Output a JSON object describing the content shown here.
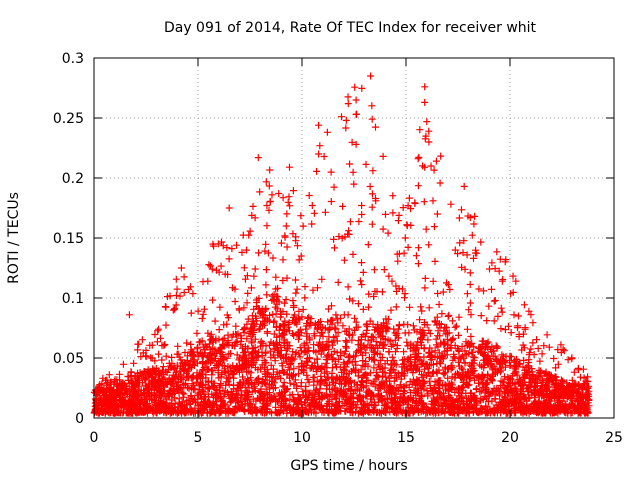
{
  "chart_data": {
    "type": "scatter",
    "title": "Day 091 of 2014, Rate Of TEC Index for receiver whit",
    "xlabel": "GPS time / hours",
    "ylabel": "ROTI / TECUs",
    "xlim": [
      0,
      25
    ],
    "ylim": [
      0,
      0.3
    ],
    "xticks": [
      0,
      5,
      10,
      15,
      20,
      25
    ],
    "xtick_labels": [
      "0",
      "5",
      "10",
      "15",
      "20",
      "25"
    ],
    "yticks": [
      0,
      0.05,
      0.1,
      0.15,
      0.2,
      0.25,
      0.3
    ],
    "ytick_labels": [
      "0",
      "0.05",
      "0.1",
      "0.15",
      "0.2",
      "0.25",
      "0.3"
    ],
    "grid": true,
    "marker": "+",
    "color": "#ff0000",
    "envelope": {
      "hours": [
        0,
        1,
        2,
        3,
        4,
        5,
        6,
        7,
        8,
        9,
        10,
        11,
        12,
        13,
        14,
        15,
        16,
        17,
        18,
        19,
        20,
        21,
        22,
        23,
        23.8
      ],
      "typical_roti": [
        0.02,
        0.025,
        0.03,
        0.035,
        0.045,
        0.05,
        0.06,
        0.06,
        0.09,
        0.09,
        0.075,
        0.07,
        0.075,
        0.07,
        0.07,
        0.07,
        0.075,
        0.065,
        0.055,
        0.055,
        0.045,
        0.035,
        0.03,
        0.025,
        0.025
      ],
      "max_roti": [
        0.03,
        0.04,
        0.065,
        0.07,
        0.13,
        0.1,
        0.17,
        0.14,
        0.22,
        0.21,
        0.18,
        0.245,
        0.265,
        0.285,
        0.22,
        0.18,
        0.275,
        0.19,
        0.17,
        0.16,
        0.13,
        0.09,
        0.07,
        0.05,
        0.04
      ]
    },
    "notable_points": [
      {
        "x": 1.7,
        "y": 0.086
      },
      {
        "x": 4.2,
        "y": 0.125
      },
      {
        "x": 6.5,
        "y": 0.175
      },
      {
        "x": 7.9,
        "y": 0.217
      },
      {
        "x": 9.4,
        "y": 0.209
      },
      {
        "x": 10.8,
        "y": 0.244
      },
      {
        "x": 10.8,
        "y": 0.22
      },
      {
        "x": 12.6,
        "y": 0.265
      },
      {
        "x": 12.6,
        "y": 0.253
      },
      {
        "x": 12.6,
        "y": 0.228
      },
      {
        "x": 13.3,
        "y": 0.285
      },
      {
        "x": 13.9,
        "y": 0.218
      },
      {
        "x": 15.1,
        "y": 0.177
      },
      {
        "x": 15.9,
        "y": 0.276
      },
      {
        "x": 15.9,
        "y": 0.263
      },
      {
        "x": 16.0,
        "y": 0.247
      },
      {
        "x": 16.1,
        "y": 0.23
      },
      {
        "x": 16.2,
        "y": 0.21
      },
      {
        "x": 16.3,
        "y": 0.181
      },
      {
        "x": 17.8,
        "y": 0.193
      },
      {
        "x": 18.3,
        "y": 0.168
      },
      {
        "x": 19.8,
        "y": 0.132
      },
      {
        "x": 22.3,
        "y": 0.057
      }
    ],
    "sample_count": 4200,
    "random_seed": 91
  }
}
